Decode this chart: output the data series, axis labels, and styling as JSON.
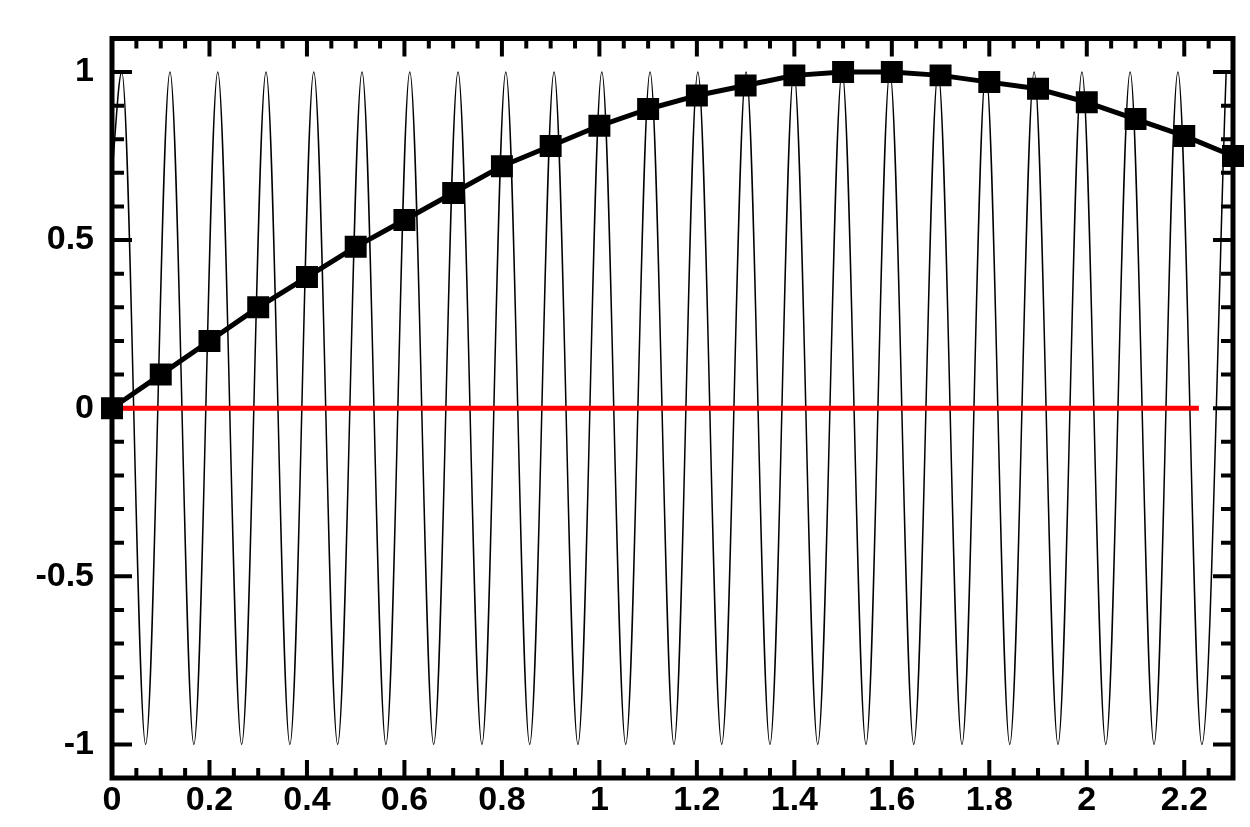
{
  "chart_data": {
    "type": "line",
    "line_style": "solid",
    "legend": false,
    "grid": false,
    "xlim": [
      0,
      2.3
    ],
    "ylim": [
      -1.1,
      1.1
    ],
    "xticks": [
      0,
      {
        "value": 0.05,
        "label": null
      },
      {
        "value": 0.1,
        "label": null
      },
      {
        "value": 0.15,
        "label": null
      },
      0.2,
      {
        "value": 0.25,
        "label": null
      },
      {
        "value": 0.3,
        "label": null
      },
      {
        "value": 0.35,
        "label": null
      },
      0.4,
      {
        "value": 0.45,
        "label": null
      },
      {
        "value": 0.5,
        "label": null
      },
      {
        "value": 0.55,
        "label": null
      },
      0.6,
      {
        "value": 0.65,
        "label": null
      },
      {
        "value": 0.7,
        "label": null
      },
      {
        "value": 0.75,
        "label": null
      },
      0.8,
      {
        "value": 0.85,
        "label": null
      },
      {
        "value": 0.9,
        "label": null
      },
      {
        "value": 0.95,
        "label": null
      },
      1,
      {
        "value": 1.05,
        "label": null
      },
      {
        "value": 1.1,
        "label": null
      },
      {
        "value": 1.15,
        "label": null
      },
      1.2,
      {
        "value": 1.25,
        "label": null
      },
      {
        "value": 1.3,
        "label": null
      },
      {
        "value": 1.35,
        "label": null
      },
      1.4,
      {
        "value": 1.45,
        "label": null
      },
      {
        "value": 1.5,
        "label": null
      },
      {
        "value": 1.55,
        "label": null
      },
      1.6,
      {
        "value": 1.65,
        "label": null
      },
      {
        "value": 1.7,
        "label": null
      },
      {
        "value": 1.75,
        "label": null
      },
      1.8,
      {
        "value": 1.85,
        "label": null
      },
      {
        "value": 1.9,
        "label": null
      },
      {
        "value": 1.95,
        "label": null
      },
      2,
      {
        "value": 2.05,
        "label": null
      },
      {
        "value": 2.1,
        "label": null
      },
      {
        "value": 2.15,
        "label": null
      },
      2.2,
      {
        "value": 2.25,
        "label": null
      }
    ],
    "yticks": [
      -1,
      {
        "value": -0.9,
        "label": null
      },
      {
        "value": -0.8,
        "label": null
      },
      {
        "value": -0.7,
        "label": null
      },
      {
        "value": -0.6,
        "label": null
      },
      -0.5,
      {
        "value": -0.4,
        "label": null
      },
      {
        "value": -0.3,
        "label": null
      },
      {
        "value": -0.2,
        "label": null
      },
      {
        "value": -0.1,
        "label": null
      },
      0,
      {
        "value": 0.1,
        "label": null
      },
      {
        "value": 0.2,
        "label": null
      },
      {
        "value": 0.3,
        "label": null
      },
      {
        "value": 0.4,
        "label": null
      },
      0.5,
      {
        "value": 0.6,
        "label": null
      },
      {
        "value": 0.7,
        "label": null
      },
      {
        "value": 0.8,
        "label": null
      },
      {
        "value": 0.9,
        "label": null
      },
      1
    ],
    "series": [
      {
        "color": "#000000",
        "marker": "none",
        "x": [
          0,
          0.02,
          0.069,
          0.119,
          0.168,
          0.217,
          0.266,
          0.316,
          0.365,
          0.414,
          0.463,
          0.513,
          0.562,
          0.611,
          0.66,
          0.71,
          0.759,
          0.808,
          0.857,
          0.907,
          0.956,
          1.005,
          1.054,
          1.104,
          1.153,
          1.202,
          1.251,
          1.301,
          1.35,
          1.399,
          1.448,
          1.498,
          1.547,
          1.596,
          1.645,
          1.695,
          1.744,
          1.793,
          1.842,
          1.892,
          1.941,
          1.99,
          2.039,
          2.089,
          2.138,
          2.187,
          2.236,
          2.286
        ],
        "values": [
          0.7,
          1,
          -1,
          1,
          -1,
          1,
          -1,
          1,
          -1,
          1,
          -1,
          1,
          -1,
          1,
          -1,
          1,
          -1,
          1,
          -1,
          1,
          -1,
          1,
          -1,
          1,
          -1,
          1,
          -1,
          1,
          -1,
          1,
          -1,
          1,
          -1,
          1,
          -1,
          1,
          -1,
          1,
          -1,
          1,
          -1,
          1,
          -1,
          1,
          -1,
          1,
          -1,
          1
        ]
      },
      {
        "color": "#ff0000",
        "marker": "none",
        "x": [
          0,
          2.23
        ],
        "values": [
          0,
          0
        ]
      },
      {
        "color": "#000000",
        "marker": "square",
        "x": [
          0,
          0.1,
          0.2,
          0.3,
          0.4,
          0.5,
          0.6,
          0.7,
          0.8,
          0.9,
          1,
          1.1,
          1.2,
          1.3,
          1.4,
          1.5,
          1.6,
          1.7,
          1.8,
          1.9,
          2,
          2.1,
          2.2,
          2.3
        ],
        "values": [
          0,
          0.1,
          0.2,
          0.3,
          0.39,
          0.48,
          0.56,
          0.64,
          0.72,
          0.78,
          0.84,
          0.89,
          0.93,
          0.96,
          0.99,
          1.0,
          1.0,
          0.99,
          0.97,
          0.95,
          0.91,
          0.86,
          0.81,
          0.75
        ]
      }
    ]
  }
}
